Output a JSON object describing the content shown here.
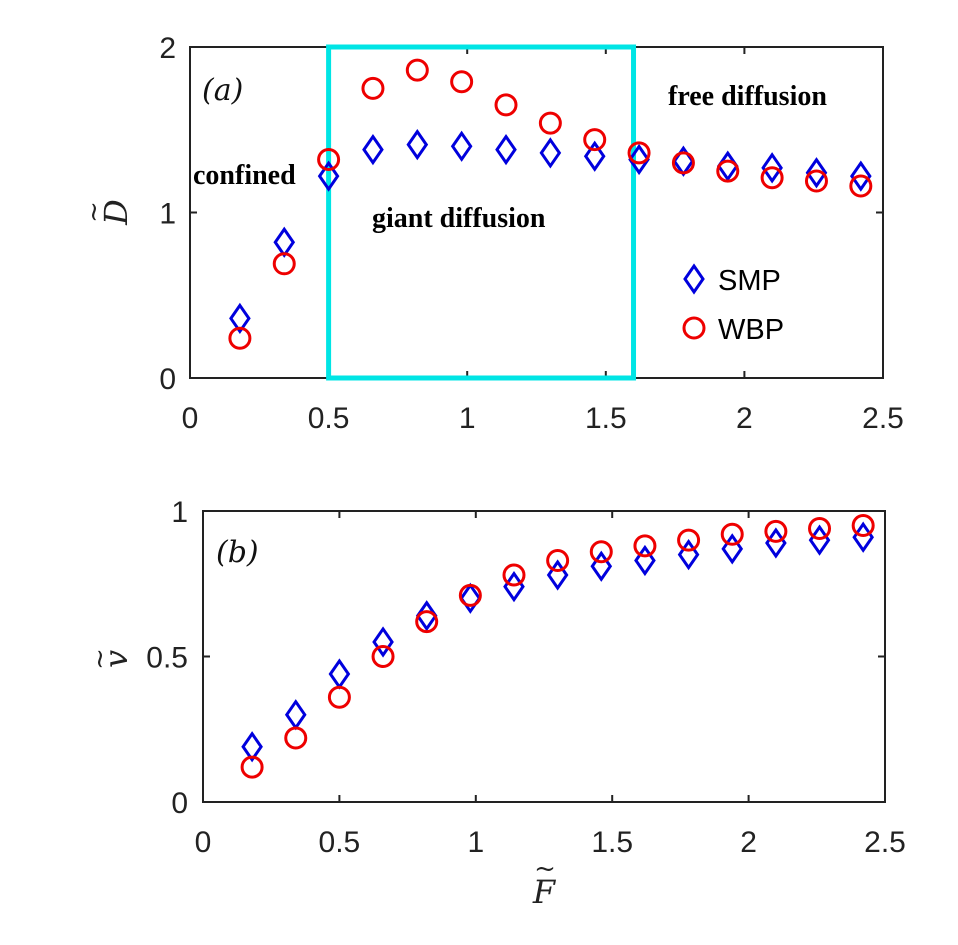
{
  "chart_data": [
    {
      "panel": "a",
      "type": "scatter",
      "panel_label": "(a)",
      "ylabel": "D",
      "ylabel_accent": "~",
      "xlim": [
        0,
        2.5
      ],
      "ylim": [
        0,
        2
      ],
      "xticks": [
        "0",
        "0.5",
        "1",
        "1.5",
        "2",
        "2.5"
      ],
      "xtick_values": [
        0,
        0.5,
        1,
        1.5,
        2,
        2.5
      ],
      "yticks": [
        "0",
        "1",
        "2"
      ],
      "ytick_values": [
        0,
        1,
        2
      ],
      "highlight_region": {
        "x0": 0.5,
        "x1": 1.6,
        "y0": 0,
        "y1": 2,
        "color": "#00e5e5"
      },
      "annotations": {
        "confined": "confined",
        "giant": "giant diffusion",
        "free": "free diffusion"
      },
      "legend": {
        "placement": "right",
        "entries": [
          "SMP",
          "WBP"
        ]
      },
      "series": [
        {
          "name": "SMP",
          "marker": "diamond",
          "color": "#0000dd",
          "x": [
            0.18,
            0.34,
            0.5,
            0.66,
            0.82,
            0.98,
            1.14,
            1.3,
            1.46,
            1.62,
            1.78,
            1.94,
            2.1,
            2.26,
            2.42
          ],
          "y": [
            0.36,
            0.82,
            1.22,
            1.38,
            1.41,
            1.4,
            1.38,
            1.36,
            1.34,
            1.32,
            1.31,
            1.28,
            1.27,
            1.24,
            1.22
          ]
        },
        {
          "name": "WBP",
          "marker": "circle",
          "color": "#ee0000",
          "x": [
            0.18,
            0.34,
            0.5,
            0.66,
            0.82,
            0.98,
            1.14,
            1.3,
            1.46,
            1.62,
            1.78,
            1.94,
            2.1,
            2.26,
            2.42
          ],
          "y": [
            0.24,
            0.69,
            1.32,
            1.75,
            1.86,
            1.79,
            1.65,
            1.54,
            1.44,
            1.36,
            1.3,
            1.25,
            1.21,
            1.19,
            1.16
          ]
        }
      ]
    },
    {
      "panel": "b",
      "type": "scatter",
      "panel_label": "(b)",
      "ylabel": "v",
      "ylabel_accent": "~",
      "xlabel": "F",
      "xlabel_accent": "~",
      "xlim": [
        0,
        2.5
      ],
      "ylim": [
        0,
        1
      ],
      "xticks": [
        "0",
        "0.5",
        "1",
        "1.5",
        "2",
        "2.5"
      ],
      "xtick_values": [
        0,
        0.5,
        1,
        1.5,
        2,
        2.5
      ],
      "yticks": [
        "0",
        "0.5",
        "1"
      ],
      "ytick_values": [
        0,
        0.5,
        1
      ],
      "series": [
        {
          "name": "SMP",
          "marker": "diamond",
          "color": "#0000dd",
          "x": [
            0.18,
            0.34,
            0.5,
            0.66,
            0.82,
            0.98,
            1.14,
            1.3,
            1.46,
            1.62,
            1.78,
            1.94,
            2.1,
            2.26,
            2.42
          ],
          "y": [
            0.19,
            0.3,
            0.44,
            0.55,
            0.64,
            0.7,
            0.74,
            0.78,
            0.81,
            0.83,
            0.85,
            0.87,
            0.89,
            0.9,
            0.91
          ]
        },
        {
          "name": "WBP",
          "marker": "circle",
          "color": "#ee0000",
          "x": [
            0.18,
            0.34,
            0.5,
            0.66,
            0.82,
            0.98,
            1.14,
            1.3,
            1.46,
            1.62,
            1.78,
            1.94,
            2.1,
            2.26,
            2.42
          ],
          "y": [
            0.12,
            0.22,
            0.36,
            0.5,
            0.62,
            0.71,
            0.78,
            0.83,
            0.86,
            0.88,
            0.9,
            0.92,
            0.93,
            0.94,
            0.95
          ]
        }
      ]
    }
  ]
}
